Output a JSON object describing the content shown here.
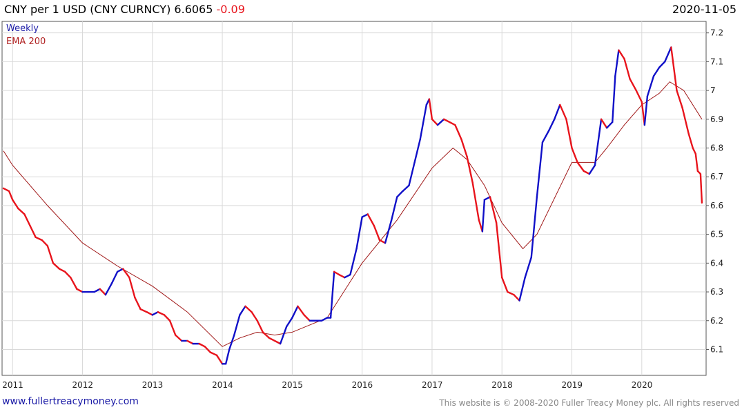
{
  "header": {
    "title": "CNY per 1 USD (CNY CURNCY)",
    "last": "6.6065",
    "change": "-0.09",
    "date": "2020-11-05"
  },
  "footer": {
    "site": "www.fullertreacymoney.com",
    "copyright": "This website is © 2008-2020 Fuller Treacy Money plc. All rights reserved"
  },
  "colors": {
    "up": "#1010c8",
    "down": "#e8141c",
    "ema": "#a01818",
    "grid": "#d9d9d9",
    "legend_weekly": "#1a1aa6",
    "legend_ema": "#b02020"
  },
  "chart_data": {
    "type": "line",
    "title": "CNY per 1 USD (CNY CURNCY)",
    "xlabel": "",
    "ylabel": "",
    "frequency": "Weekly",
    "grid": true,
    "legend_position": "top-left",
    "legend": [
      "Weekly",
      "EMA 200"
    ],
    "x_ticks": [
      "2011",
      "2012",
      "2013",
      "2014",
      "2015",
      "2016",
      "2017",
      "2018",
      "2019",
      "2020"
    ],
    "y_ticks": [
      "6.1",
      "6.2",
      "6.3",
      "6.4",
      "6.5",
      "6.6",
      "6.7",
      "6.8",
      "6.9",
      "7",
      "7.1",
      "7.2"
    ],
    "xlim": [
      2010.85,
      2020.92
    ],
    "ylim": [
      6.01,
      7.24
    ],
    "series": [
      {
        "name": "Weekly",
        "points": [
          [
            2010.87,
            6.66
          ],
          [
            2010.95,
            6.65
          ],
          [
            2011.0,
            6.62
          ],
          [
            2011.08,
            6.59
          ],
          [
            2011.17,
            6.57
          ],
          [
            2011.25,
            6.53
          ],
          [
            2011.33,
            6.49
          ],
          [
            2011.42,
            6.48
          ],
          [
            2011.5,
            6.46
          ],
          [
            2011.58,
            6.4
          ],
          [
            2011.67,
            6.38
          ],
          [
            2011.75,
            6.37
          ],
          [
            2011.83,
            6.35
          ],
          [
            2011.92,
            6.31
          ],
          [
            2012.0,
            6.3
          ],
          [
            2012.08,
            6.3
          ],
          [
            2012.17,
            6.3
          ],
          [
            2012.25,
            6.31
          ],
          [
            2012.33,
            6.29
          ],
          [
            2012.42,
            6.33
          ],
          [
            2012.5,
            6.37
          ],
          [
            2012.58,
            6.38
          ],
          [
            2012.67,
            6.35
          ],
          [
            2012.75,
            6.28
          ],
          [
            2012.83,
            6.24
          ],
          [
            2012.92,
            6.23
          ],
          [
            2013.0,
            6.22
          ],
          [
            2013.08,
            6.23
          ],
          [
            2013.17,
            6.22
          ],
          [
            2013.25,
            6.2
          ],
          [
            2013.33,
            6.15
          ],
          [
            2013.42,
            6.13
          ],
          [
            2013.5,
            6.13
          ],
          [
            2013.58,
            6.12
          ],
          [
            2013.67,
            6.12
          ],
          [
            2013.75,
            6.11
          ],
          [
            2013.83,
            6.09
          ],
          [
            2013.92,
            6.08
          ],
          [
            2014.0,
            6.05
          ],
          [
            2014.05,
            6.05
          ],
          [
            2014.1,
            6.1
          ],
          [
            2014.17,
            6.15
          ],
          [
            2014.25,
            6.22
          ],
          [
            2014.33,
            6.25
          ],
          [
            2014.42,
            6.23
          ],
          [
            2014.5,
            6.2
          ],
          [
            2014.58,
            6.16
          ],
          [
            2014.67,
            6.14
          ],
          [
            2014.75,
            6.13
          ],
          [
            2014.83,
            6.12
          ],
          [
            2014.92,
            6.18
          ],
          [
            2015.0,
            6.21
          ],
          [
            2015.08,
            6.25
          ],
          [
            2015.17,
            6.22
          ],
          [
            2015.25,
            6.2
          ],
          [
            2015.33,
            6.2
          ],
          [
            2015.42,
            6.2
          ],
          [
            2015.5,
            6.21
          ],
          [
            2015.55,
            6.21
          ],
          [
            2015.6,
            6.37
          ],
          [
            2015.67,
            6.36
          ],
          [
            2015.75,
            6.35
          ],
          [
            2015.83,
            6.36
          ],
          [
            2015.92,
            6.45
          ],
          [
            2016.0,
            6.56
          ],
          [
            2016.08,
            6.57
          ],
          [
            2016.17,
            6.53
          ],
          [
            2016.25,
            6.48
          ],
          [
            2016.33,
            6.47
          ],
          [
            2016.42,
            6.55
          ],
          [
            2016.5,
            6.63
          ],
          [
            2016.58,
            6.65
          ],
          [
            2016.67,
            6.67
          ],
          [
            2016.75,
            6.75
          ],
          [
            2016.83,
            6.83
          ],
          [
            2016.92,
            6.95
          ],
          [
            2016.96,
            6.97
          ],
          [
            2017.0,
            6.9
          ],
          [
            2017.08,
            6.88
          ],
          [
            2017.17,
            6.9
          ],
          [
            2017.25,
            6.89
          ],
          [
            2017.33,
            6.88
          ],
          [
            2017.42,
            6.83
          ],
          [
            2017.5,
            6.77
          ],
          [
            2017.58,
            6.68
          ],
          [
            2017.67,
            6.55
          ],
          [
            2017.72,
            6.51
          ],
          [
            2017.75,
            6.62
          ],
          [
            2017.83,
            6.63
          ],
          [
            2017.92,
            6.54
          ],
          [
            2018.0,
            6.35
          ],
          [
            2018.08,
            6.3
          ],
          [
            2018.17,
            6.29
          ],
          [
            2018.25,
            6.27
          ],
          [
            2018.33,
            6.35
          ],
          [
            2018.42,
            6.42
          ],
          [
            2018.5,
            6.63
          ],
          [
            2018.58,
            6.82
          ],
          [
            2018.67,
            6.86
          ],
          [
            2018.75,
            6.9
          ],
          [
            2018.83,
            6.95
          ],
          [
            2018.92,
            6.9
          ],
          [
            2019.0,
            6.8
          ],
          [
            2019.08,
            6.75
          ],
          [
            2019.17,
            6.72
          ],
          [
            2019.25,
            6.71
          ],
          [
            2019.33,
            6.74
          ],
          [
            2019.42,
            6.9
          ],
          [
            2019.5,
            6.87
          ],
          [
            2019.58,
            6.89
          ],
          [
            2019.62,
            7.05
          ],
          [
            2019.67,
            7.14
          ],
          [
            2019.75,
            7.11
          ],
          [
            2019.83,
            7.04
          ],
          [
            2019.92,
            7.0
          ],
          [
            2020.0,
            6.96
          ],
          [
            2020.04,
            6.88
          ],
          [
            2020.08,
            6.98
          ],
          [
            2020.17,
            7.05
          ],
          [
            2020.25,
            7.08
          ],
          [
            2020.33,
            7.1
          ],
          [
            2020.42,
            7.15
          ],
          [
            2020.5,
            7.0
          ],
          [
            2020.58,
            6.94
          ],
          [
            2020.67,
            6.85
          ],
          [
            2020.73,
            6.8
          ],
          [
            2020.77,
            6.78
          ],
          [
            2020.8,
            6.72
          ],
          [
            2020.84,
            6.71
          ],
          [
            2020.86,
            6.61
          ]
        ]
      },
      {
        "name": "EMA 200",
        "points": [
          [
            2010.87,
            6.79
          ],
          [
            2011.0,
            6.74
          ],
          [
            2011.5,
            6.6
          ],
          [
            2012.0,
            6.47
          ],
          [
            2012.5,
            6.39
          ],
          [
            2013.0,
            6.32
          ],
          [
            2013.5,
            6.23
          ],
          [
            2014.0,
            6.11
          ],
          [
            2014.25,
            6.14
          ],
          [
            2014.5,
            6.16
          ],
          [
            2014.75,
            6.15
          ],
          [
            2015.0,
            6.16
          ],
          [
            2015.5,
            6.21
          ],
          [
            2016.0,
            6.4
          ],
          [
            2016.5,
            6.55
          ],
          [
            2017.0,
            6.73
          ],
          [
            2017.3,
            6.8
          ],
          [
            2017.5,
            6.76
          ],
          [
            2017.75,
            6.67
          ],
          [
            2018.0,
            6.54
          ],
          [
            2018.3,
            6.45
          ],
          [
            2018.5,
            6.5
          ],
          [
            2019.0,
            6.75
          ],
          [
            2019.33,
            6.75
          ],
          [
            2019.5,
            6.8
          ],
          [
            2019.75,
            6.88
          ],
          [
            2020.0,
            6.95
          ],
          [
            2020.25,
            6.99
          ],
          [
            2020.4,
            7.03
          ],
          [
            2020.6,
            7.0
          ],
          [
            2020.86,
            6.9
          ]
        ]
      }
    ]
  }
}
